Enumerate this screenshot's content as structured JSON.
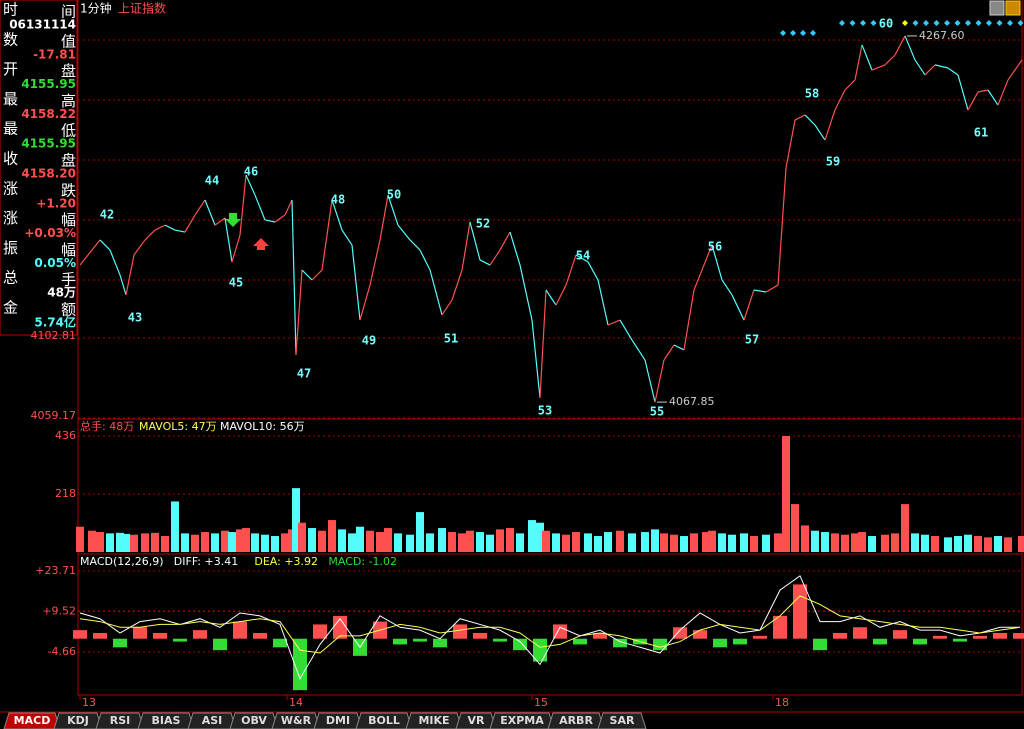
{
  "header": {
    "period": "1分钟",
    "index_name": "上证指数"
  },
  "info_panel": {
    "rows": [
      {
        "left": "时",
        "right": "间",
        "value": "06131114",
        "color": "#ffffff"
      },
      {
        "left": "数",
        "right": "值",
        "value": "-17.81",
        "color": "#ff5050"
      },
      {
        "left": "开",
        "right": "盘",
        "value": "4155.95",
        "color": "#33dd33"
      },
      {
        "left": "最",
        "right": "高",
        "value": "4158.22",
        "color": "#ff5050"
      },
      {
        "left": "最",
        "right": "低",
        "value": "4155.95",
        "color": "#33dd33"
      },
      {
        "left": "收",
        "right": "盘",
        "value": "4158.20",
        "color": "#ff5050"
      },
      {
        "left": "涨",
        "right": "跌",
        "value": "+1.20",
        "color": "#ff5050"
      },
      {
        "left": "涨",
        "right": "幅",
        "value": "+0.03%",
        "color": "#ff5050"
      },
      {
        "left": "振",
        "right": "幅",
        "value": "0.05%",
        "color": "#54fcfc"
      },
      {
        "left": "总",
        "right": "手",
        "value": "48万",
        "color": "#ffffff"
      },
      {
        "left": "金",
        "right": "额",
        "value": "5.74亿",
        "color": "#54fcfc"
      }
    ]
  },
  "chart_data": [
    {
      "type": "line",
      "up_color": "#ff5050",
      "down_color": "#54fcfc",
      "xlim": [
        0,
        942
      ],
      "ylim": [
        4059.17,
        4287.2
      ],
      "yticks": [
        4102.81,
        4059.17
      ],
      "x": [
        0,
        12,
        20,
        30,
        40,
        46,
        54,
        65,
        75,
        85,
        95,
        105,
        115,
        125,
        135,
        145,
        152,
        160,
        166,
        175,
        185,
        195,
        205,
        212,
        216,
        222,
        232,
        242,
        252,
        262,
        272,
        280,
        290,
        300,
        308,
        318,
        330,
        340,
        350,
        362,
        372,
        382,
        390,
        400,
        410,
        420,
        430,
        440,
        452,
        460,
        466,
        476,
        486,
        496,
        508,
        518,
        528,
        540,
        552,
        565,
        575,
        584,
        594,
        604,
        614,
        626,
        632,
        642,
        652,
        664,
        674,
        686,
        698,
        706,
        715,
        725,
        735,
        745,
        755,
        765,
        775,
        782,
        792,
        805,
        815,
        825,
        835,
        845,
        855,
        868,
        878,
        888,
        898,
        908,
        918,
        928,
        942
      ],
      "values": [
        4142.6,
        4150.8,
        4156.3,
        4150.8,
        4137.2,
        4126.3,
        4148.1,
        4156.3,
        4161.7,
        4164.4,
        4161.7,
        4160.6,
        4169.9,
        4178.1,
        4164.4,
        4168.3,
        4144.3,
        4159.0,
        4191.7,
        4180.8,
        4167.2,
        4166.1,
        4169.9,
        4178.1,
        4093.6,
        4139.9,
        4134.5,
        4139.9,
        4178.1,
        4161.7,
        4153.5,
        4112.6,
        4131.7,
        4156.3,
        4180.8,
        4164.4,
        4156.3,
        4150.8,
        4139.9,
        4115.4,
        4123.5,
        4139.9,
        4166.1,
        4145.4,
        4142.6,
        4150.8,
        4160.6,
        4142.6,
        4112.6,
        4070.1,
        4129.0,
        4120.8,
        4131.7,
        4148.1,
        4144.3,
        4134.5,
        4109.9,
        4112.6,
        4101.7,
        4090.8,
        4067.85,
        4090.8,
        4099.0,
        4096.3,
        4129.0,
        4145.4,
        4153.5,
        4134.5,
        4126.3,
        4112.6,
        4129.0,
        4127.9,
        4131.7,
        4195.6,
        4221.7,
        4224.5,
        4219.0,
        4210.8,
        4227.2,
        4238.1,
        4243.6,
        4262.7,
        4249.0,
        4251.8,
        4257.2,
        4267.6,
        4254.5,
        4246.3,
        4251.8,
        4250.1,
        4246.3,
        4227.2,
        4237.0,
        4238.1,
        4229.9,
        4243.6,
        4254.5
      ],
      "annotations": [
        {
          "value": 4267.6,
          "label": "4267.60"
        },
        {
          "value": 4067.85,
          "label": "4067.85"
        }
      ],
      "waves": [
        "42",
        "43",
        "44",
        "45",
        "46",
        "47",
        "48",
        "49",
        "50",
        "51",
        "52",
        "53",
        "54",
        "55",
        "56",
        "57",
        "58",
        "59",
        "60",
        "61"
      ],
      "day_ticks": [
        {
          "value": 0,
          "label": "13"
        },
        {
          "value": 207,
          "label": "14"
        },
        {
          "value": 452,
          "label": "15"
        },
        {
          "value": 693,
          "label": "18"
        }
      ]
    },
    {
      "type": "volume",
      "legend": [
        "总手: 48万",
        "MAVOL5: 47万",
        "MAVOL10: 56万"
      ],
      "legend_colors": [
        "#ff5050",
        "#ffff55",
        "#ffffff"
      ],
      "ylim": [
        0,
        436
      ],
      "yticks": [
        436,
        218
      ],
      "values": [
        95,
        80,
        75,
        70,
        72,
        68,
        65,
        70,
        72,
        60,
        190,
        70,
        65,
        75,
        70,
        80,
        75,
        85,
        90,
        70,
        65,
        60,
        70,
        85,
        240,
        110,
        90,
        80,
        120,
        85,
        70,
        95,
        80,
        75,
        90,
        70,
        65,
        150,
        70,
        90,
        75,
        70,
        80,
        75,
        65,
        85,
        90,
        70,
        120,
        110,
        80,
        70,
        65,
        75,
        70,
        60,
        75,
        80,
        70,
        75,
        85,
        70,
        65,
        60,
        70,
        75,
        80,
        70,
        65,
        70,
        60,
        65,
        70,
        436,
        180,
        100,
        80,
        75,
        70,
        65,
        70,
        75,
        60,
        65,
        70,
        180,
        70,
        65,
        60,
        55,
        60,
        65,
        60,
        55,
        60,
        55,
        60
      ]
    },
    {
      "type": "macd",
      "legend": [
        "MACD(12,26,9)",
        "DIFF: +3.41",
        "DEA: +3.92",
        "MACD: -1.02"
      ],
      "legend_colors": [
        "#ffffff",
        "#ffffff",
        "#ffff55",
        "#33dd33"
      ],
      "ylim": [
        -19.7,
        28.6
      ],
      "yticks": [
        {
          "value": 23.71,
          "label": "+23.71"
        },
        {
          "value": 9.52,
          "label": "+9.52"
        },
        -4.66
      ],
      "x": [
        0,
        20,
        40,
        60,
        80,
        100,
        120,
        140,
        160,
        180,
        200,
        220,
        240,
        260,
        280,
        300,
        320,
        340,
        360,
        380,
        400,
        420,
        440,
        460,
        480,
        500,
        520,
        540,
        560,
        580,
        600,
        620,
        640,
        660,
        680,
        700,
        720,
        740,
        760,
        780,
        800,
        820,
        840,
        860,
        880,
        900,
        920,
        940
      ],
      "series": [
        {
          "name": "MACD",
          "color": "#ff5050",
          "neg_color": "#33dd33",
          "values": [
            3,
            2,
            -3,
            4,
            2,
            -1,
            3,
            -4,
            6,
            2,
            -3,
            -18,
            5,
            8,
            -6,
            6,
            -2,
            -1,
            -3,
            5,
            2,
            -1,
            -4,
            -8,
            5,
            -2,
            2,
            -3,
            -2,
            -4,
            4,
            3,
            -3,
            -2,
            1,
            8,
            19,
            -4,
            2,
            4,
            -2,
            3,
            -2,
            1,
            -1,
            1,
            2,
            2
          ]
        },
        {
          "name": "DIFF",
          "color": "#ffffff",
          "values": [
            9,
            7,
            2,
            6,
            7,
            5,
            7,
            4,
            9,
            8,
            5,
            -14,
            -2,
            7,
            -3,
            8,
            4,
            3,
            0,
            7,
            5,
            3,
            -1,
            -9,
            4,
            1,
            3,
            -1,
            -3,
            -5,
            3,
            9,
            5,
            2,
            3,
            17,
            22,
            6,
            6,
            8,
            4,
            6,
            3,
            3,
            1,
            2,
            4,
            4
          ]
        },
        {
          "name": "DEA",
          "color": "#ffff55",
          "values": [
            7,
            6,
            4,
            4,
            5,
            5,
            6,
            5,
            6,
            7,
            6,
            -4,
            -5,
            1,
            1,
            3,
            5,
            4,
            2,
            3,
            4,
            4,
            2,
            -3,
            -2,
            1,
            2,
            1,
            -1,
            -3,
            -1,
            3,
            5,
            4,
            3,
            8,
            15,
            12,
            8,
            7,
            6,
            5,
            4,
            4,
            3,
            2,
            3,
            4
          ]
        }
      ]
    }
  ],
  "tabs": [
    "MACD",
    "KDJ",
    "RSI",
    "BIAS",
    "ASI",
    "OBV",
    "W&R",
    "DMI",
    "BOLL",
    "MIKE",
    "VR",
    "EXPMA",
    "ARBR",
    "SAR"
  ]
}
